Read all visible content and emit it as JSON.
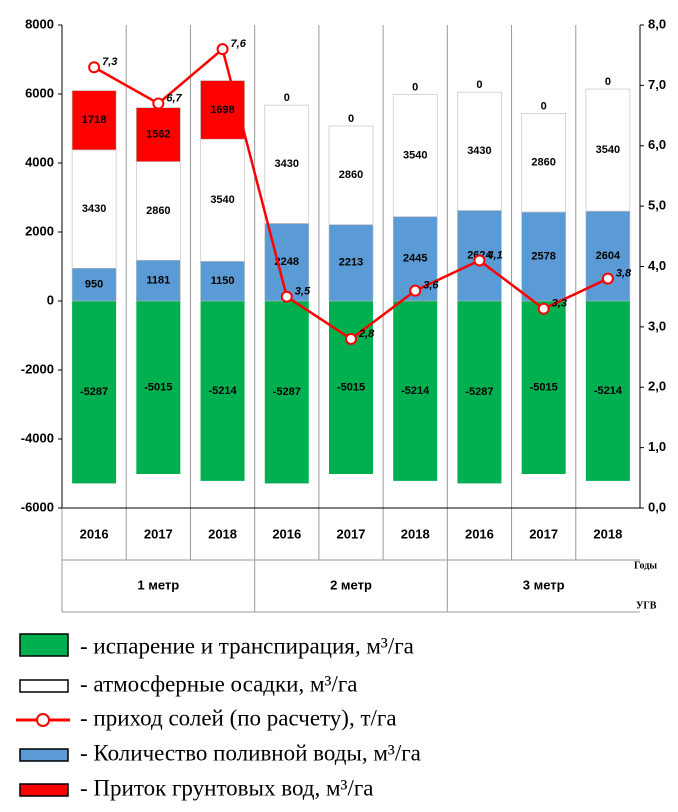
{
  "chart_data": {
    "type": "bar",
    "categories": [
      "2016",
      "2017",
      "2018",
      "2016",
      "2017",
      "2018",
      "2016",
      "2017",
      "2018"
    ],
    "groups": [
      "1 метр",
      "2 метр",
      "3 метр"
    ],
    "x_annotations": [
      "Годы",
      "УГВ"
    ],
    "stacked": true,
    "series": [
      {
        "name": "- испарение и транспирация, м³/га",
        "type": "bar",
        "color": "#00b050",
        "values": [
          -5287,
          -5015,
          -5214,
          -5287,
          -5015,
          -5214,
          -5287,
          -5015,
          -5214
        ]
      },
      {
        "name": "- атмосферные осадки, м³/га",
        "type": "bar",
        "color": "#ffffff",
        "values": [
          3430,
          2860,
          3540,
          3430,
          2860,
          3540,
          3430,
          2860,
          3540
        ]
      },
      {
        "name": "- приход солей (по расчету), т/га",
        "type": "line",
        "axis": "y2",
        "color": "#ff0000",
        "values": [
          7.3,
          6.7,
          7.6,
          3.5,
          2.8,
          3.6,
          4.1,
          3.3,
          3.8
        ],
        "value_labels": [
          "7,3",
          "6,7",
          "7,6",
          "3,5",
          "2,8",
          "3,6",
          "4,1",
          "3,3",
          "3,8"
        ]
      },
      {
        "name": "- Количество поливной воды, м³/га",
        "type": "bar",
        "color": "#5b9bd5",
        "values": [
          950,
          1181,
          1150,
          2248,
          2213,
          2445,
          2624,
          2578,
          2604
        ]
      },
      {
        "name": "- Приток грунтовых вод, м³/га",
        "type": "bar",
        "color": "#ff0000",
        "values": [
          1718,
          1562,
          1698,
          0,
          0,
          0,
          0,
          0,
          0
        ]
      }
    ],
    "ylim": [
      -6000,
      8000
    ],
    "yticks": [
      -6000,
      -4000,
      -2000,
      0,
      2000,
      4000,
      6000,
      8000
    ],
    "y2lim": [
      0,
      8
    ],
    "y2ticks": [
      {
        "value": 0,
        "label": "0,0"
      },
      {
        "value": 1,
        "label": "1,0"
      },
      {
        "value": 2,
        "label": "2,0"
      },
      {
        "value": 3,
        "label": "3,0"
      },
      {
        "value": 4,
        "label": "4,0"
      },
      {
        "value": 5,
        "label": "5,0"
      },
      {
        "value": 6,
        "label": "6,0"
      },
      {
        "value": 7,
        "label": "7,0"
      },
      {
        "value": 8,
        "label": "8,0"
      }
    ]
  }
}
